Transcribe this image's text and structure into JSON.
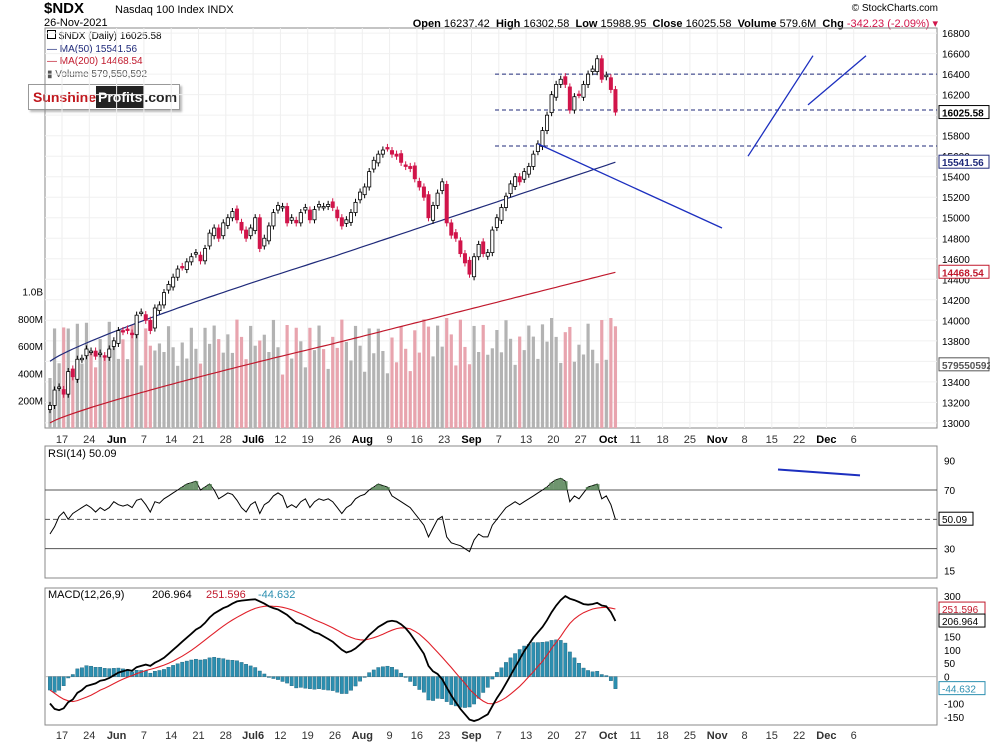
{
  "header": {
    "ticker": "$NDX",
    "name": "Nasdaq 100 Index INDX",
    "date": "26-Nov-2021",
    "watermark": "© StockCharts.com",
    "open_label": "Open",
    "open": "16237.42",
    "high_label": "High",
    "high": "16302.58",
    "low_label": "Low",
    "low": "15988.95",
    "close_label": "Close",
    "close": "16025.58",
    "volume_label": "Volume",
    "volume": "579.6M",
    "chg_label": "Chg",
    "chg": "-342.23 (-2.09%)"
  },
  "legend": {
    "price": "$NDX (Daily) 16025.58",
    "ma50": "MA(50) 15541.56",
    "ma200": "MA(200) 14468.54",
    "volume": "Volume 579,550,592"
  },
  "logo": {
    "part1": "Sunshine",
    "part2": "Profits",
    "part3": ".com"
  },
  "colors": {
    "up": "#000000",
    "down": "#d1154a",
    "ma50": "#1f2a7a",
    "ma200": "#c0182c",
    "trend": "#1c2fbf",
    "hist": "#2c8fb0",
    "vol_up": "#b3b3b3",
    "vol_down": "#e8a4ae"
  },
  "chart_data": [
    {
      "type": "candlestick",
      "title": "$NDX Nasdaq 100 Index (Daily)",
      "ylim": [
        12950,
        16850
      ],
      "yticks": [
        13000,
        13200,
        13400,
        13600,
        13800,
        14000,
        14200,
        14400,
        14600,
        14800,
        15000,
        15200,
        15400,
        15600,
        15800,
        16000,
        16200,
        16400,
        16600,
        16800
      ],
      "value_tags": {
        "close": "16025.58",
        "ma50": "15541.56",
        "ma200": "14468.54",
        "volume": "579550592"
      },
      "closes": [
        13170,
        13320,
        13350,
        13280,
        13500,
        13450,
        13620,
        13630,
        13720,
        13700,
        13650,
        13680,
        13640,
        13720,
        13800,
        13900,
        13890,
        13900,
        13860,
        14050,
        14080,
        14000,
        13900,
        14120,
        14150,
        14270,
        14350,
        14420,
        14500,
        14520,
        14570,
        14620,
        14660,
        14580,
        14700,
        14850,
        14900,
        14800,
        14950,
        15000,
        15060,
        14980,
        14880,
        14800,
        14900,
        15000,
        14700,
        14800,
        14920,
        15050,
        15120,
        15110,
        14950,
        15000,
        14950,
        15050,
        15100,
        14980,
        15080,
        15130,
        15110,
        15130,
        15100,
        15000,
        14920,
        14980,
        15050,
        15150,
        15250,
        15300,
        15450,
        15560,
        15620,
        15660,
        15680,
        15620,
        15600,
        15540,
        15500,
        15480,
        15380,
        15300,
        15200,
        15000,
        15120,
        15240,
        15350,
        14950,
        14830,
        14800,
        14650,
        14560,
        14450,
        14620,
        14740,
        14650,
        14660,
        14880,
        15000,
        15100,
        15210,
        15330,
        15400,
        15350,
        15450,
        15500,
        15620,
        15720,
        15850,
        16000,
        16200,
        16300,
        16350,
        16300,
        16050,
        16180,
        16200,
        16300,
        16400,
        16450,
        16550,
        16350,
        16390,
        16250,
        16030
      ],
      "ma50_range": [
        13600,
        15541.56
      ],
      "ma200_range": [
        13000,
        14468.54
      ],
      "levels": [
        16400,
        16050,
        15700
      ],
      "x_labels": [
        "17",
        "24",
        "Jun",
        "7",
        "14",
        "21",
        "28",
        "Jul6",
        "12",
        "19",
        "26",
        "Aug",
        "9",
        "16",
        "23",
        "Sep",
        "7",
        "13",
        "20",
        "27",
        "Oct",
        "11",
        "18",
        "25",
        "Nov",
        "8",
        "15",
        "22",
        "Dec",
        "6"
      ]
    },
    {
      "type": "bar",
      "title": "Volume",
      "ylim": [
        0,
        1100
      ],
      "unit": "M",
      "yticks": [
        200,
        400,
        600,
        800,
        1000
      ],
      "ytick_labels": [
        "200M",
        "400M",
        "600M",
        "800M",
        "1.0B"
      ]
    },
    {
      "type": "line",
      "title": "RSI(14) 50.09",
      "ylim": [
        10,
        100
      ],
      "yticks": [
        15,
        30,
        50,
        70,
        90
      ],
      "overbought": 70,
      "oversold": 30,
      "last": "50.09",
      "values": [
        40,
        45,
        52,
        55,
        50,
        54,
        56,
        58,
        60,
        58,
        55,
        58,
        56,
        58,
        62,
        60,
        59,
        60,
        58,
        63,
        64,
        60,
        55,
        62,
        61,
        64,
        66,
        68,
        70,
        72,
        74,
        75,
        76,
        70,
        72,
        74,
        70,
        64,
        66,
        68,
        67,
        63,
        58,
        55,
        60,
        62,
        54,
        60,
        62,
        66,
        68,
        66,
        58,
        60,
        58,
        62,
        64,
        58,
        62,
        64,
        63,
        64,
        62,
        58,
        54,
        58,
        60,
        64,
        66,
        67,
        70,
        72,
        74,
        73,
        72,
        66,
        64,
        62,
        60,
        58,
        54,
        50,
        46,
        38,
        44,
        50,
        52,
        38,
        34,
        33,
        32,
        30,
        28,
        36,
        40,
        38,
        38,
        46,
        50,
        54,
        58,
        60,
        62,
        60,
        62,
        64,
        66,
        68,
        70,
        72,
        75,
        77,
        78,
        76,
        62,
        66,
        64,
        68,
        72,
        73,
        74,
        64,
        66,
        60,
        50
      ]
    },
    {
      "type": "line",
      "title": "MACD(12,26,9)",
      "series_labels": [
        "206.964",
        "251.596",
        "-44.632"
      ],
      "ylim": [
        -180,
        330
      ],
      "yticks": [
        -150,
        -100,
        -50,
        0,
        50,
        100,
        150,
        200,
        250,
        300
      ],
      "tags": {
        "signal": "251.596",
        "macd": "206.964",
        "hist": "-44.632"
      },
      "macd": [
        -100,
        -120,
        -125,
        -118,
        -95,
        -85,
        -60,
        -50,
        -35,
        -30,
        -25,
        -15,
        -12,
        -5,
        5,
        15,
        20,
        25,
        22,
        35,
        40,
        45,
        40,
        52,
        60,
        70,
        85,
        100,
        115,
        130,
        145,
        160,
        175,
        185,
        200,
        220,
        235,
        245,
        255,
        262,
        272,
        280,
        283,
        285,
        287,
        288,
        280,
        272,
        262,
        255,
        250,
        240,
        230,
        215,
        200,
        195,
        185,
        175,
        165,
        160,
        150,
        140,
        130,
        115,
        100,
        90,
        95,
        105,
        120,
        135,
        155,
        170,
        185,
        195,
        205,
        208,
        205,
        195,
        180,
        160,
        135,
        110,
        85,
        40,
        20,
        10,
        -10,
        -40,
        -70,
        -95,
        -120,
        -140,
        -160,
        -165,
        -160,
        -150,
        -140,
        -110,
        -80,
        -55,
        -25,
        5,
        35,
        65,
        95,
        120,
        145,
        165,
        185,
        210,
        240,
        265,
        285,
        300,
        290,
        285,
        278,
        270,
        268,
        270,
        275,
        265,
        262,
        240,
        207
      ],
      "signal": [
        -50,
        -62,
        -74,
        -84,
        -90,
        -93,
        -89,
        -83,
        -76,
        -69,
        -60,
        -50,
        -43,
        -35,
        -26,
        -17,
        -9,
        -2,
        4,
        11,
        17,
        23,
        27,
        32,
        37,
        43,
        50,
        58,
        67,
        76,
        87,
        98,
        110,
        123,
        136,
        150,
        163,
        176,
        188,
        200,
        211,
        221,
        230,
        239,
        247,
        254,
        259,
        262,
        263,
        262,
        261,
        258,
        254,
        249,
        242,
        235,
        228,
        220,
        212,
        205,
        198,
        190,
        182,
        173,
        163,
        153,
        146,
        140,
        137,
        136,
        140,
        145,
        151,
        158,
        166,
        173,
        179,
        182,
        181,
        178,
        169,
        158,
        143,
        127,
        109,
        91,
        72,
        53,
        34,
        14,
        -6,
        -25,
        -47,
        -63,
        -79,
        -91,
        -100,
        -101,
        -96,
        -88,
        -78,
        -65,
        -51,
        -36,
        -19,
        0,
        18,
        38,
        57,
        80,
        105,
        128,
        150,
        175,
        198,
        215,
        228,
        238,
        245,
        252,
        255,
        257,
        258,
        255,
        252
      ]
    }
  ]
}
